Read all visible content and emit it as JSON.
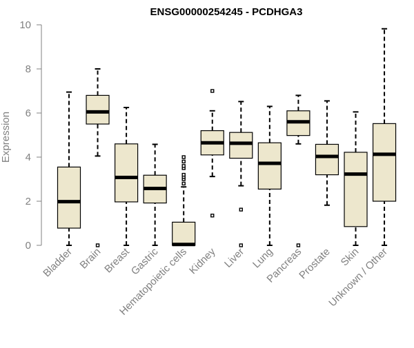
{
  "chart_data": {
    "type": "box",
    "title": "ENSG00000254245 - PCDHGA3",
    "xlabel": "",
    "ylabel": "Expression",
    "ylim": [
      0,
      10
    ],
    "yticks": [
      0,
      2,
      4,
      6,
      8,
      10
    ],
    "grid": false,
    "box_fill": "#ede7cd",
    "axis_color": "#808080",
    "categories": [
      "Bladder",
      "Brain",
      "Breast",
      "Gastric",
      "Hematopoietic cells",
      "Kidney",
      "Liver",
      "Lung",
      "Pancreas",
      "Prostate",
      "Skin",
      "Unknown / Other"
    ],
    "boxes": [
      {
        "min": 0.0,
        "q1": 0.78,
        "median": 1.98,
        "q3": 3.55,
        "max": 6.95,
        "outliers": []
      },
      {
        "min": 4.05,
        "q1": 5.5,
        "median": 6.05,
        "q3": 6.8,
        "max": 8.0,
        "outliers": [
          0.0
        ]
      },
      {
        "min": 0.0,
        "q1": 1.97,
        "median": 3.08,
        "q3": 4.6,
        "max": 6.25,
        "outliers": []
      },
      {
        "min": 0.0,
        "q1": 1.92,
        "median": 2.58,
        "q3": 3.18,
        "max": 4.58,
        "outliers": []
      },
      {
        "min": 0.0,
        "q1": 0.0,
        "median": 0.04,
        "q3": 1.05,
        "max": 2.65,
        "outliers": [
          2.8,
          3.0,
          3.1,
          3.2,
          3.5,
          3.6,
          3.8,
          4.0
        ]
      },
      {
        "min": 3.12,
        "q1": 4.1,
        "median": 4.65,
        "q3": 5.2,
        "max": 6.1,
        "outliers": [
          1.35,
          7.0
        ]
      },
      {
        "min": 2.7,
        "q1": 3.95,
        "median": 4.63,
        "q3": 5.12,
        "max": 6.52,
        "outliers": [
          0.0,
          1.62
        ]
      },
      {
        "min": 0.0,
        "q1": 2.55,
        "median": 3.72,
        "q3": 4.65,
        "max": 6.3,
        "outliers": []
      },
      {
        "min": 4.6,
        "q1": 4.98,
        "median": 5.6,
        "q3": 6.1,
        "max": 6.8,
        "outliers": [
          0.0
        ]
      },
      {
        "min": 1.82,
        "q1": 3.2,
        "median": 4.03,
        "q3": 4.58,
        "max": 6.55,
        "outliers": []
      },
      {
        "min": 0.0,
        "q1": 0.85,
        "median": 3.23,
        "q3": 4.22,
        "max": 6.05,
        "outliers": []
      },
      {
        "min": 0.0,
        "q1": 2.0,
        "median": 4.13,
        "q3": 5.52,
        "max": 9.82,
        "outliers": []
      }
    ]
  }
}
